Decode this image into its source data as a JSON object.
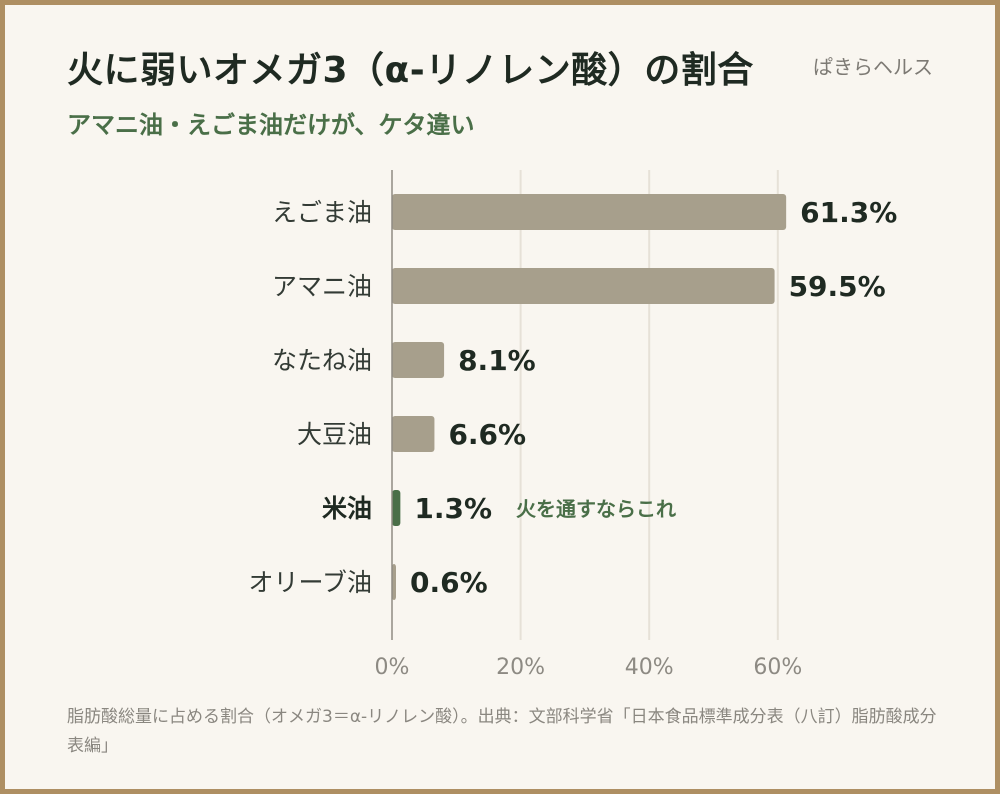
{
  "header": {
    "title": "火に弱いオメガ3（α-リノレン酸）の割合",
    "subtitle": "アマニ油・えごま油だけが、ケタ違い",
    "brand": "ぱきらヘルス"
  },
  "footnote": "脂肪酸総量に占める割合（オメガ3＝α-リノレン酸）。出典：文部科学省「日本食品標準成分表（八訂）脂肪酸成分表編」",
  "colors": {
    "bar": "#a79f8c",
    "highlight_bar": "#4a6f48",
    "axis": "#8f8b83",
    "grid": "#e6e1d7",
    "frame": "#ae8f63",
    "background": "#f9f6f0"
  },
  "chart_data": {
    "type": "bar",
    "orientation": "horizontal",
    "categories": [
      "えごま油",
      "アマニ油",
      "なたね油",
      "大豆油",
      "米油",
      "オリーブ油"
    ],
    "values": [
      61.3,
      59.5,
      8.1,
      6.6,
      1.3,
      0.6
    ],
    "value_labels": [
      "61.3%",
      "59.5%",
      "8.1%",
      "6.6%",
      "1.3%",
      "0.6%"
    ],
    "highlight_index": 4,
    "annotation": "火を通すならこれ",
    "xlim": [
      0,
      70
    ],
    "xticks": [
      0,
      20,
      40,
      60
    ],
    "xtick_labels": [
      "0%",
      "20%",
      "40%",
      "60%"
    ],
    "grid": true
  }
}
